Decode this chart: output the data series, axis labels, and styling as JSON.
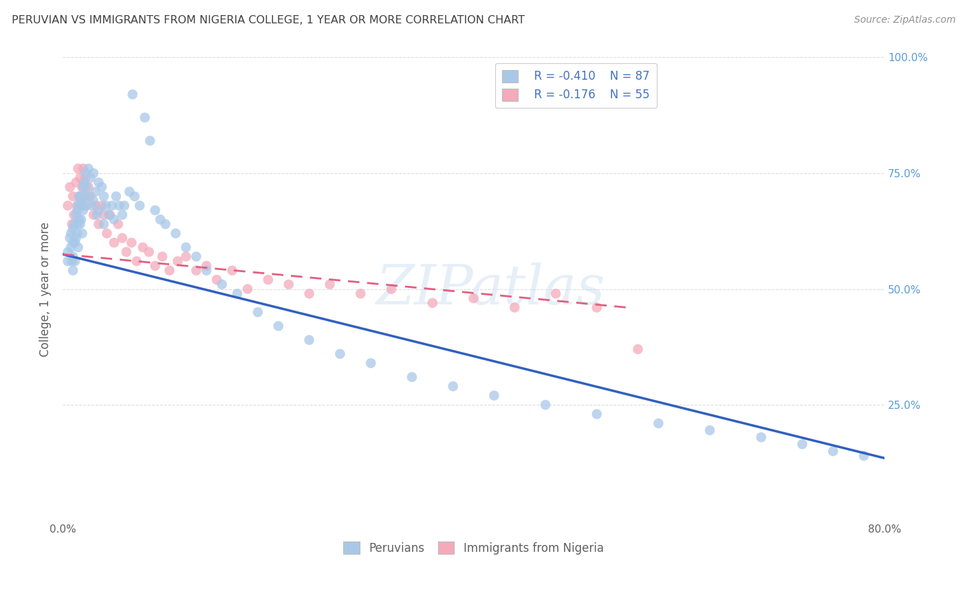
{
  "title": "PERUVIAN VS IMMIGRANTS FROM NIGERIA COLLEGE, 1 YEAR OR MORE CORRELATION CHART",
  "source": "Source: ZipAtlas.com",
  "ylabel": "College, 1 year or more",
  "xmin": 0.0,
  "xmax": 0.8,
  "ymin": 0.0,
  "ymax": 1.0,
  "xticks": [
    0.0,
    0.1,
    0.2,
    0.3,
    0.4,
    0.5,
    0.6,
    0.7,
    0.8
  ],
  "xtick_labels": [
    "0.0%",
    "",
    "",
    "",
    "",
    "",
    "",
    "",
    "80.0%"
  ],
  "yticks": [
    0.0,
    0.25,
    0.5,
    0.75,
    1.0
  ],
  "ytick_labels_right": [
    "",
    "25.0%",
    "50.0%",
    "75.0%",
    "100.0%"
  ],
  "legend_r1": "R = -0.410",
  "legend_n1": "N = 87",
  "legend_r2": "R = -0.176",
  "legend_n2": "N = 55",
  "color_blue": "#A8C8E8",
  "color_pink": "#F4AABB",
  "color_blue_line": "#3060C0",
  "color_pink_line": "#E06080",
  "color_title": "#404040",
  "color_source": "#909090",
  "color_axis_label": "#606060",
  "color_tick_right": "#5B9BD5",
  "color_grid": "#DDDDDD",
  "blue_line_x0": 0.0,
  "blue_line_y0": 0.575,
  "blue_line_x1": 0.8,
  "blue_line_y1": 0.135,
  "pink_line_x0": 0.0,
  "pink_line_y0": 0.575,
  "pink_line_x1": 0.55,
  "pink_line_y1": 0.46,
  "watermark_text": "ZIPatlas",
  "bottom_legend_blue": "Peruvians",
  "bottom_legend_pink": "Immigrants from Nigeria",
  "peruvian_x": [
    0.005,
    0.005,
    0.007,
    0.008,
    0.008,
    0.009,
    0.01,
    0.01,
    0.01,
    0.01,
    0.011,
    0.012,
    0.012,
    0.013,
    0.013,
    0.014,
    0.014,
    0.015,
    0.015,
    0.015,
    0.016,
    0.016,
    0.017,
    0.017,
    0.018,
    0.018,
    0.019,
    0.019,
    0.02,
    0.02,
    0.021,
    0.021,
    0.022,
    0.022,
    0.023,
    0.025,
    0.025,
    0.027,
    0.028,
    0.03,
    0.03,
    0.032,
    0.033,
    0.035,
    0.035,
    0.038,
    0.04,
    0.04,
    0.042,
    0.045,
    0.048,
    0.05,
    0.052,
    0.055,
    0.058,
    0.06,
    0.065,
    0.068,
    0.07,
    0.075,
    0.08,
    0.085,
    0.09,
    0.095,
    0.1,
    0.11,
    0.12,
    0.13,
    0.14,
    0.155,
    0.17,
    0.19,
    0.21,
    0.24,
    0.27,
    0.3,
    0.34,
    0.38,
    0.42,
    0.47,
    0.52,
    0.58,
    0.63,
    0.68,
    0.72,
    0.75,
    0.78
  ],
  "peruvian_y": [
    0.58,
    0.56,
    0.61,
    0.59,
    0.62,
    0.56,
    0.63,
    0.6,
    0.57,
    0.54,
    0.64,
    0.6,
    0.56,
    0.66,
    0.61,
    0.67,
    0.62,
    0.68,
    0.64,
    0.59,
    0.7,
    0.65,
    0.69,
    0.64,
    0.7,
    0.65,
    0.68,
    0.62,
    0.72,
    0.67,
    0.73,
    0.68,
    0.75,
    0.7,
    0.72,
    0.76,
    0.7,
    0.74,
    0.68,
    0.75,
    0.69,
    0.71,
    0.66,
    0.73,
    0.67,
    0.72,
    0.7,
    0.64,
    0.68,
    0.66,
    0.68,
    0.65,
    0.7,
    0.68,
    0.66,
    0.68,
    0.71,
    0.92,
    0.7,
    0.68,
    0.87,
    0.82,
    0.67,
    0.65,
    0.64,
    0.62,
    0.59,
    0.57,
    0.54,
    0.51,
    0.49,
    0.45,
    0.42,
    0.39,
    0.36,
    0.34,
    0.31,
    0.29,
    0.27,
    0.25,
    0.23,
    0.21,
    0.195,
    0.18,
    0.165,
    0.15,
    0.14
  ],
  "nigeria_x": [
    0.005,
    0.007,
    0.009,
    0.01,
    0.011,
    0.013,
    0.014,
    0.015,
    0.016,
    0.017,
    0.018,
    0.019,
    0.02,
    0.021,
    0.022,
    0.023,
    0.025,
    0.027,
    0.03,
    0.032,
    0.035,
    0.038,
    0.04,
    0.043,
    0.046,
    0.05,
    0.054,
    0.058,
    0.062,
    0.067,
    0.072,
    0.078,
    0.084,
    0.09,
    0.097,
    0.104,
    0.112,
    0.12,
    0.13,
    0.14,
    0.15,
    0.165,
    0.18,
    0.2,
    0.22,
    0.24,
    0.26,
    0.29,
    0.32,
    0.36,
    0.4,
    0.44,
    0.48,
    0.52,
    0.56
  ],
  "nigeria_y": [
    0.68,
    0.72,
    0.64,
    0.7,
    0.66,
    0.73,
    0.68,
    0.76,
    0.7,
    0.74,
    0.68,
    0.72,
    0.76,
    0.7,
    0.74,
    0.68,
    0.72,
    0.7,
    0.66,
    0.68,
    0.64,
    0.68,
    0.66,
    0.62,
    0.66,
    0.6,
    0.64,
    0.61,
    0.58,
    0.6,
    0.56,
    0.59,
    0.58,
    0.55,
    0.57,
    0.54,
    0.56,
    0.57,
    0.54,
    0.55,
    0.52,
    0.54,
    0.5,
    0.52,
    0.51,
    0.49,
    0.51,
    0.49,
    0.5,
    0.47,
    0.48,
    0.46,
    0.49,
    0.46,
    0.37
  ]
}
